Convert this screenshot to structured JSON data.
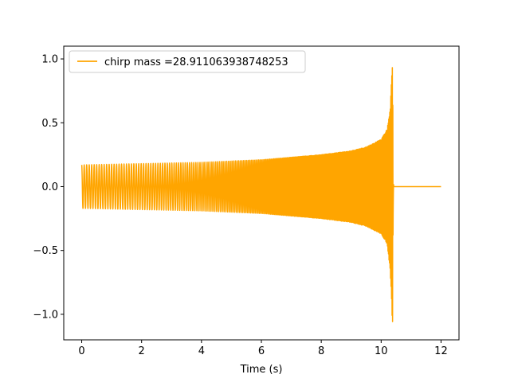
{
  "chart_data": {
    "type": "line",
    "title": "",
    "xlabel": "Time (s)",
    "ylabel": "",
    "xlim": [
      -0.6,
      12.6
    ],
    "ylim": [
      -1.2,
      1.1
    ],
    "xticks": [
      0,
      2,
      4,
      6,
      8,
      10,
      12
    ],
    "xtick_labels": [
      "0",
      "2",
      "4",
      "6",
      "8",
      "10",
      "12"
    ],
    "yticks": [
      -1.0,
      -0.5,
      0.0,
      0.5,
      1.0
    ],
    "ytick_labels": [
      "−1.0",
      "−0.5",
      "0.0",
      "0.5",
      "1.0"
    ],
    "grid": false,
    "legend_position": "upper-left",
    "series": [
      {
        "name": "chirp mass =28.911063938748253",
        "color": "#ffa500",
        "envelope": {
          "x": [
            0,
            2,
            4,
            6,
            8,
            9,
            9.5,
            10,
            10.2,
            10.3,
            10.35,
            10.38,
            10.4,
            10.42,
            10.45,
            12
          ],
          "upper": [
            0.17,
            0.18,
            0.19,
            0.21,
            0.25,
            0.28,
            0.31,
            0.37,
            0.45,
            0.6,
            0.85,
            1.0,
            0.3,
            0,
            0,
            0
          ],
          "lower": [
            -0.17,
            -0.18,
            -0.19,
            -0.21,
            -0.25,
            -0.28,
            -0.31,
            -0.37,
            -0.45,
            -0.65,
            -0.9,
            -1.12,
            -0.3,
            0,
            0,
            0
          ]
        },
        "oscillation": {
          "start_x": 0,
          "merger_x": 10.4,
          "start_frequency_hz": 12,
          "merger_frequency_hz": 60
        }
      }
    ]
  }
}
